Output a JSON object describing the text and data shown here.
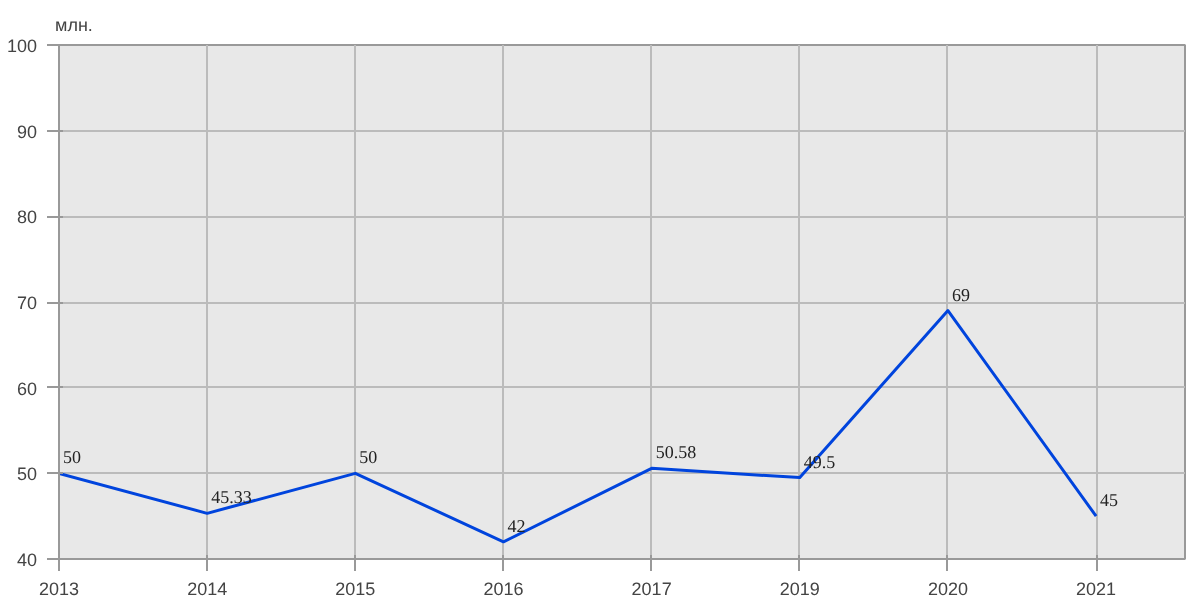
{
  "chart_data": {
    "type": "line",
    "ylabel": "млн.",
    "categories": [
      "2013",
      "2014",
      "2015",
      "2016",
      "2017",
      "2019",
      "2020",
      "2021"
    ],
    "series": [
      {
        "color": "#0044dd",
        "values": [
          50,
          45.33,
          50,
          42,
          50.58,
          49.5,
          69,
          45
        ]
      }
    ],
    "ylim": [
      40,
      100
    ],
    "yticks": [
      40,
      50,
      60,
      70,
      80,
      90,
      100
    ],
    "grid": true,
    "data_labels": true,
    "line_style": "solid"
  }
}
